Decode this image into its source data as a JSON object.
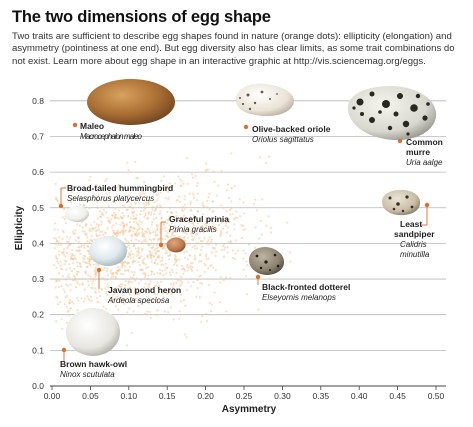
{
  "header": {
    "title": "The two dimensions of egg shape",
    "subtitle": "Two traits are sufficient to describe egg shapes found in nature (orange dots): ellipticity (elongation) and asymmetry (pointiness at one end). But egg diversity also has clear limits, as some trait combinations do not exist. Learn more about egg shape in an interactive graphic at http://vis.sciencemag.org/eggs."
  },
  "chart_data": {
    "type": "scatter",
    "title": "The two dimensions of egg shape",
    "xlabel": "Asymmetry",
    "ylabel": "Ellipticity",
    "xlim": [
      0,
      0.5
    ],
    "ylim": [
      0,
      0.85
    ],
    "x_ticks": [
      "0.00",
      "0.05",
      "0.10",
      "0.15",
      "0.20",
      "0.25",
      "0.30",
      "0.35",
      "0.40",
      "0.45",
      "0.50"
    ],
    "y_ticks": [
      "0.0",
      "0.1",
      "0.2",
      "0.3",
      "0.4",
      "0.5",
      "0.6",
      "0.7",
      "0.8"
    ],
    "grid": "horizontal",
    "colors": {
      "dots": "#f6c596",
      "markers": "#d9702d",
      "grid": "#b8b8b8",
      "axis": "#444444"
    },
    "species": [
      {
        "common": "Maleo",
        "scientific": "Macrocephalon maleo",
        "x": 0.03,
        "y": 0.73,
        "egg": "tan"
      },
      {
        "common": "Olive-backed oriole",
        "scientific": "Oriolus sagittatus",
        "x": 0.255,
        "y": 0.72,
        "egg": "speckled"
      },
      {
        "common": "Common murre",
        "scientific": "Uria aalge",
        "x": 0.455,
        "y": 0.66,
        "egg": "blotched"
      },
      {
        "common": "Broad-tailed hummingbird",
        "scientific": "Selasphorus platycercus",
        "x": 0.015,
        "y": 0.485,
        "egg": "white"
      },
      {
        "common": "Graceful prinia",
        "scientific": "Prinia gracilis",
        "x": 0.145,
        "y": 0.38,
        "egg": "brown"
      },
      {
        "common": "Least sandpiper",
        "scientific": "Calidris minutilla",
        "x": 0.49,
        "y": 0.5,
        "egg": "spotted"
      },
      {
        "common": "Javan pond heron",
        "scientific": "Ardeola speciosa",
        "x": 0.063,
        "y": 0.32,
        "egg": "blue"
      },
      {
        "common": "Black-fronted dotterel",
        "scientific": "Elseyornis melanops",
        "x": 0.27,
        "y": 0.29,
        "egg": "speckled-dark"
      },
      {
        "common": "Brown hawk-owl",
        "scientific": "Ninox scutulata",
        "x": 0.02,
        "y": 0.095,
        "egg": "white-large"
      }
    ]
  }
}
